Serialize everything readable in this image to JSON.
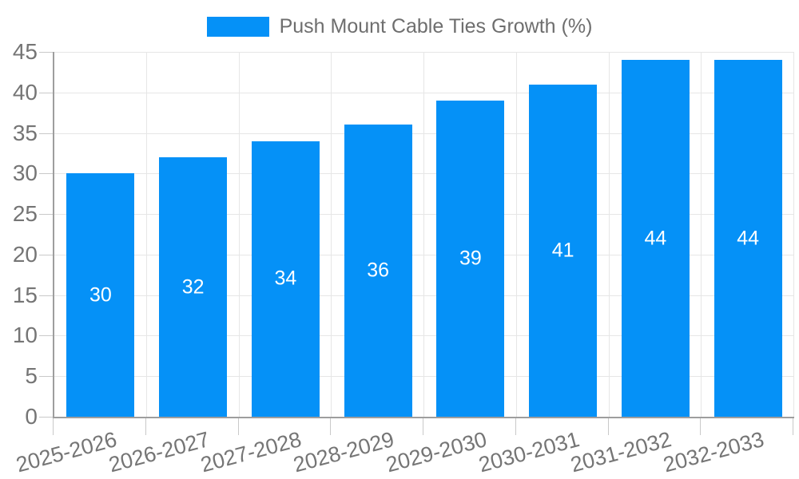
{
  "chart_data": {
    "type": "bar",
    "title": "",
    "legend": {
      "label": "Push Mount Cable Ties Growth (%)",
      "position": "top"
    },
    "categories": [
      "2025-2026",
      "2026-2027",
      "2027-2028",
      "2028-2029",
      "2029-2030",
      "2030-2031",
      "2031-2032",
      "2032-2033"
    ],
    "series": [
      {
        "name": "Push Mount Cable Ties Growth (%)",
        "values": [
          30,
          32,
          34,
          36,
          39,
          41,
          44,
          44
        ]
      }
    ],
    "value_labels": [
      "30",
      "32",
      "34",
      "36",
      "39",
      "41",
      "44",
      "44"
    ],
    "xlabel": "",
    "ylabel": "",
    "ylim": [
      0,
      45
    ],
    "ytick_labels": [
      "0",
      "5",
      "10",
      "15",
      "20",
      "25",
      "30",
      "35",
      "40",
      "45"
    ],
    "grid": true,
    "x_label_rotation_deg": -15,
    "legend_position": "top",
    "colors": {
      "bar": "#0591f7",
      "axis_label": "#757575",
      "legend_text": "#6e6e6e",
      "gridline": "#e6e6e6",
      "axis_line": "#9e9e9e",
      "tick": "#c9c9c9",
      "value_label": "#ffffff",
      "background": "#ffffff"
    }
  }
}
